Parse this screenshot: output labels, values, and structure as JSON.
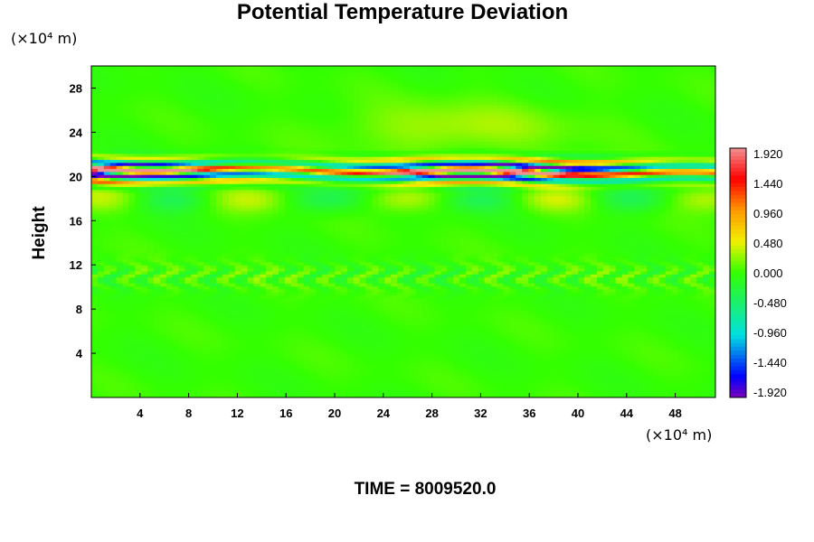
{
  "chart_data": {
    "type": "heatmap",
    "title": "Potential Temperature Deviation",
    "ylabel": "Height",
    "y_unit": "(×10⁴ m)",
    "x_unit": "(×10⁴ m)",
    "footer": "TIME = 8009520.0",
    "xlim": [
      0,
      51.3
    ],
    "ylim": [
      0,
      30
    ],
    "x_ticks": [
      4,
      8,
      12,
      16,
      20,
      24,
      28,
      32,
      36,
      40,
      44,
      48
    ],
    "y_ticks": [
      4,
      8,
      12,
      16,
      20,
      24,
      28
    ],
    "colorbar": {
      "range": [
        -1.92,
        1.92
      ],
      "labels": [
        "1.920",
        "1.440",
        "0.960",
        "0.480",
        "0.000",
        "-0.480",
        "-0.960",
        "-1.440",
        "-1.920"
      ],
      "colors": {
        "min": "#7a00b8",
        "blue": "#0000ff",
        "cyan": "#00e0e0",
        "zero": "#33ff00",
        "yellow": "#f0f000",
        "orange": "#ff9900",
        "red": "#ff0000",
        "max": "#f09090"
      }
    },
    "field_features": [
      {
        "feature": "background",
        "value": 0.0
      },
      {
        "feature": "strong oscillating layer",
        "y_range": [
          19.2,
          21.8
        ],
        "min": -1.92,
        "max": 1.92
      },
      {
        "feature": "weak positive region",
        "x_range": [
          20,
          40
        ],
        "y_range": [
          22,
          27
        ],
        "value": 0.3
      },
      {
        "feature": "weak perturbation band",
        "y_range": [
          9.5,
          12.5
        ],
        "value": 0.25
      }
    ]
  }
}
